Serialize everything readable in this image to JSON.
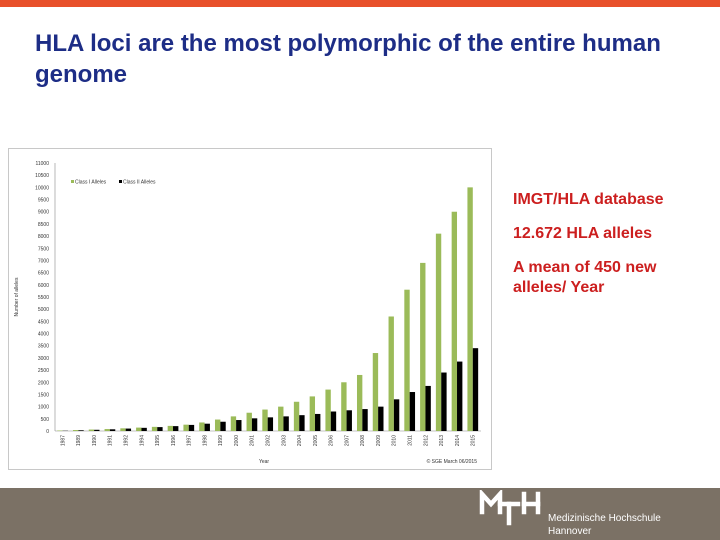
{
  "slide": {
    "title": "HLA loci are the most polymorphic of the entire human genome",
    "facts": [
      "IMGT/HLA database",
      "12.672 HLA alleles",
      "A mean of 450 new alleles/ Year"
    ],
    "logo_line1": "Medizinische Hochschule",
    "logo_line2": "Hannover"
  },
  "colors": {
    "accent_bar": "#e8502a",
    "title": "#1d2d86",
    "facts": "#cc1f1f",
    "class_i": "#9bbb59",
    "class_ii": "#000000",
    "footer": "#7b7165"
  },
  "chart_data": {
    "type": "bar",
    "xlabel": "Year",
    "ylabel": "Number of alleles",
    "ylim": [
      0,
      11000
    ],
    "yticks": [
      0,
      500,
      1000,
      1500,
      2000,
      2500,
      3000,
      3500,
      4000,
      4500,
      5000,
      5500,
      6000,
      6500,
      7000,
      7500,
      8000,
      8500,
      9000,
      9500,
      10000,
      10500,
      11000
    ],
    "legend_position": "top-left",
    "source_note": "© SGE March 06/2015",
    "categories": [
      "1987",
      "1989",
      "1990",
      "1991",
      "1992",
      "1994",
      "1995",
      "1996",
      "1997",
      "1998",
      "1999",
      "2000",
      "2001",
      "2002",
      "2003",
      "2004",
      "2005",
      "2006",
      "2007",
      "2008",
      "2009",
      "2010",
      "2011",
      "2012",
      "2013",
      "2014",
      "2015"
    ],
    "series": [
      {
        "name": "Class I Alleles",
        "values": [
          20,
          40,
          60,
          80,
          110,
          140,
          170,
          210,
          260,
          350,
          470,
          600,
          750,
          880,
          1000,
          1200,
          1420,
          1700,
          2000,
          2300,
          3200,
          4700,
          5800,
          6900,
          8100,
          9000,
          10000
        ]
      },
      {
        "name": "Class II Alleles",
        "values": [
          10,
          30,
          50,
          70,
          100,
          130,
          160,
          200,
          250,
          300,
          380,
          450,
          520,
          560,
          600,
          650,
          700,
          800,
          850,
          900,
          1000,
          1300,
          1600,
          1850,
          2400,
          2850,
          3400
        ]
      }
    ]
  }
}
